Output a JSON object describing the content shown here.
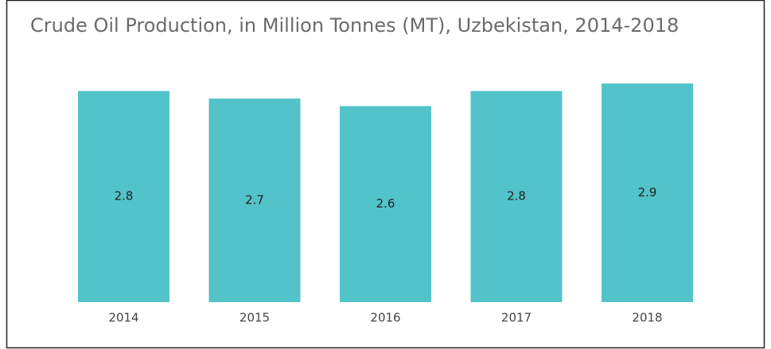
{
  "chart_data": {
    "type": "bar",
    "title": "Crude Oil Production, in Million Tonnes (MT), Uzbekistan, 2014-2018",
    "categories": [
      "2014",
      "2015",
      "2016",
      "2017",
      "2018"
    ],
    "values": [
      2.8,
      2.7,
      2.6,
      2.8,
      2.9
    ],
    "color": "#52c3c9"
  }
}
